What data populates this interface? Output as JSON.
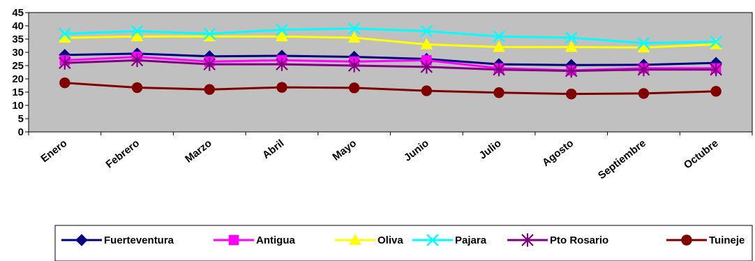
{
  "chart_data": {
    "type": "line",
    "title": "",
    "xlabel": "",
    "ylabel": "",
    "ylim": [
      0,
      45
    ],
    "y_ticks": [
      0,
      5,
      10,
      15,
      20,
      25,
      30,
      35,
      40,
      45
    ],
    "categories": [
      "Enero",
      "Febrero",
      "Marzo",
      "Abril",
      "Mayo",
      "Junio",
      "Julio",
      "Agosto",
      "Septiembre",
      "Octubre"
    ],
    "plot_background": "#c0c0c0",
    "grid": false,
    "legend_position": "bottom",
    "series": [
      {
        "name": "Fuerteventura",
        "color": "#000080",
        "marker": "diamond",
        "values": [
          29.0,
          29.5,
          28.5,
          28.7,
          28.3,
          27.5,
          25.5,
          25.2,
          25.3,
          26.0
        ]
      },
      {
        "name": "Antigua",
        "color": "#ff00ff",
        "marker": "square",
        "values": [
          27.0,
          28.3,
          26.5,
          27.0,
          26.5,
          27.0,
          24.0,
          23.2,
          24.0,
          24.0
        ]
      },
      {
        "name": "Oliva",
        "color": "#ffff00",
        "marker": "triangle",
        "values": [
          35.5,
          36.0,
          36.0,
          36.0,
          35.5,
          33.0,
          32.0,
          32.0,
          31.8,
          33.0
        ]
      },
      {
        "name": "Pajara",
        "color": "#00ffff",
        "marker": "x",
        "values": [
          37.0,
          38.0,
          37.0,
          38.5,
          39.0,
          38.0,
          36.0,
          35.5,
          33.5,
          34.0
        ]
      },
      {
        "name": "Pto Rosario",
        "color": "#800080",
        "marker": "star",
        "values": [
          26.0,
          27.0,
          25.5,
          25.5,
          25.0,
          24.5,
          23.5,
          23.0,
          23.5,
          23.5
        ]
      },
      {
        "name": "Tuineje",
        "color": "#800000",
        "marker": "circle",
        "values": [
          18.5,
          16.7,
          16.0,
          16.8,
          16.6,
          15.5,
          14.8,
          14.3,
          14.5,
          15.3
        ]
      }
    ]
  }
}
